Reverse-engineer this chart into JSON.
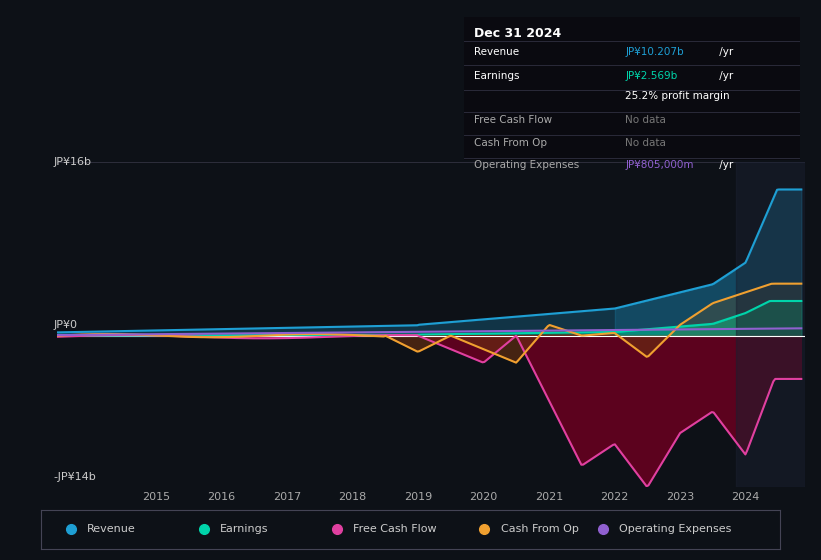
{
  "background_color": "#0d1117",
  "plot_bg_color": "#0d1117",
  "ytick_labels": [
    "-JP¥14b",
    "JP¥0",
    "JP¥16b"
  ],
  "revenue_color": "#1e9fd4",
  "earnings_color": "#00d4aa",
  "free_cash_flow_color": "#e040a0",
  "cash_from_op_color": "#f0a030",
  "op_expenses_color": "#9060d0",
  "legend_labels": [
    "Revenue",
    "Earnings",
    "Free Cash Flow",
    "Cash From Op",
    "Operating Expenses"
  ],
  "info_box": {
    "title": "Dec 31 2024",
    "revenue_label": "Revenue",
    "revenue_value": "JP¥10.207b",
    "revenue_unit": " /yr",
    "earnings_label": "Earnings",
    "earnings_value": "JP¥2.569b",
    "earnings_unit": " /yr",
    "profit_margin": "25.2% profit margin",
    "free_cash_flow_label": "Free Cash Flow",
    "free_cash_flow_value": "No data",
    "cash_from_op_label": "Cash From Op",
    "cash_from_op_value": "No data",
    "op_expenses_label": "Operating Expenses",
    "op_expenses_value": "JP¥805,000m",
    "op_expenses_unit": " /yr"
  }
}
